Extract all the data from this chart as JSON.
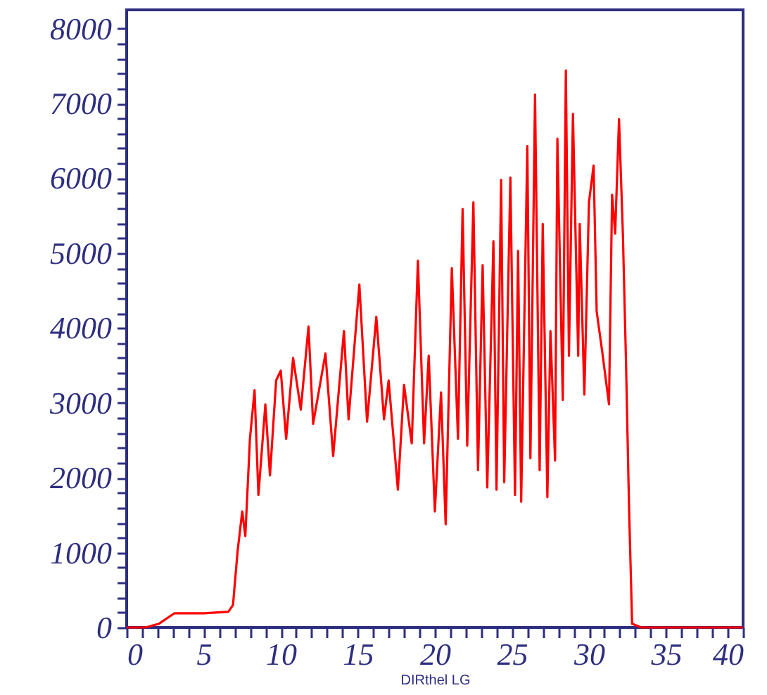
{
  "chart_data": {
    "type": "line",
    "xlabel": "DIRthel LG",
    "x": [
      0,
      1.2,
      2.1,
      3.1,
      5,
      6.6,
      6.9,
      7.2,
      7.5,
      7.7,
      8.0,
      8.3,
      8.55,
      9.0,
      9.3,
      9.7,
      10.0,
      10.35,
      10.8,
      11.3,
      11.8,
      12.1,
      12.9,
      13.4,
      14.1,
      14.4,
      15.1,
      15.6,
      16.2,
      16.7,
      17.0,
      17.6,
      18.0,
      18.5,
      18.9,
      19.3,
      19.6,
      20.0,
      20.4,
      20.7,
      21.1,
      21.5,
      21.8,
      22.1,
      22.5,
      22.8,
      23.1,
      23.4,
      23.8,
      24.0,
      24.3,
      24.5,
      24.9,
      25.2,
      25.4,
      25.6,
      26.0,
      26.2,
      26.5,
      26.8,
      27.0,
      27.3,
      27.5,
      27.8,
      27.95,
      28.3,
      28.5,
      28.7,
      28.96,
      29.3,
      29.4,
      29.7,
      30.0,
      30.3,
      30.5,
      30.85,
      31.3,
      31.5,
      31.7,
      31.95,
      32.2,
      32.4,
      32.6,
      32.8,
      33.4,
      40
    ],
    "series": [
      {
        "color": "#ff0000",
        "values": [
          0,
          0,
          50,
          190,
          190,
          210,
          300,
          1020,
          1550,
          1220,
          2520,
          3170,
          1770,
          2980,
          2030,
          3300,
          3430,
          2520,
          3600,
          2910,
          4020,
          2720,
          3660,
          2290,
          3960,
          2780,
          4580,
          2750,
          4150,
          2780,
          3300,
          1840,
          3240,
          2460,
          4900,
          2460,
          3630,
          1550,
          3140,
          1380,
          4800,
          2520,
          5590,
          2430,
          5680,
          2100,
          4840,
          1870,
          5160,
          1840,
          5980,
          1940,
          6010,
          1770,
          5030,
          1680,
          6430,
          2260,
          7120,
          2100,
          5390,
          1740,
          3960,
          2230,
          6530,
          3040,
          7440,
          3630,
          6860,
          3630,
          5390,
          3110,
          5680,
          6170,
          4220,
          3700,
          2980,
          5780,
          5260,
          6790,
          5260,
          3570,
          1610,
          50,
          0,
          0
        ]
      }
    ],
    "xlim": [
      0,
      40
    ],
    "ylim": [
      0,
      8250
    ],
    "xticks": [
      0,
      {
        "value": 1,
        "label": null
      },
      {
        "value": 2,
        "label": null
      },
      {
        "value": 3,
        "label": null
      },
      {
        "value": 4,
        "label": null
      },
      5,
      {
        "value": 6,
        "label": null
      },
      {
        "value": 7,
        "label": null
      },
      {
        "value": 8,
        "label": null
      },
      {
        "value": 9,
        "label": null
      },
      10,
      {
        "value": 11,
        "label": null
      },
      {
        "value": 12,
        "label": null
      },
      {
        "value": 13,
        "label": null
      },
      {
        "value": 14,
        "label": null
      },
      15,
      {
        "value": 16,
        "label": null
      },
      {
        "value": 17,
        "label": null
      },
      {
        "value": 18,
        "label": null
      },
      {
        "value": 19,
        "label": null
      },
      20,
      {
        "value": 21,
        "label": null
      },
      {
        "value": 22,
        "label": null
      },
      {
        "value": 23,
        "label": null
      },
      {
        "value": 24,
        "label": null
      },
      25,
      {
        "value": 26,
        "label": null
      },
      {
        "value": 27,
        "label": null
      },
      {
        "value": 28,
        "label": null
      },
      {
        "value": 29,
        "label": null
      },
      30,
      {
        "value": 31,
        "label": null
      },
      {
        "value": 32,
        "label": null
      },
      {
        "value": 33,
        "label": null
      },
      {
        "value": 34,
        "label": null
      },
      35,
      {
        "value": 36,
        "label": null
      },
      {
        "value": 37,
        "label": null
      },
      {
        "value": 38,
        "label": null
      },
      {
        "value": 39,
        "label": null
      },
      40
    ],
    "yticks": [
      0,
      {
        "value": 200,
        "label": null
      },
      {
        "value": 400,
        "label": null
      },
      {
        "value": 600,
        "label": null
      },
      {
        "value": 800,
        "label": null
      },
      1000,
      {
        "value": 1200,
        "label": null
      },
      {
        "value": 1400,
        "label": null
      },
      {
        "value": 1600,
        "label": null
      },
      {
        "value": 1800,
        "label": null
      },
      2000,
      {
        "value": 2200,
        "label": null
      },
      {
        "value": 2400,
        "label": null
      },
      {
        "value": 2600,
        "label": null
      },
      {
        "value": 2800,
        "label": null
      },
      3000,
      {
        "value": 3200,
        "label": null
      },
      {
        "value": 3400,
        "label": null
      },
      {
        "value": 3600,
        "label": null
      },
      {
        "value": 3800,
        "label": null
      },
      4000,
      {
        "value": 4200,
        "label": null
      },
      {
        "value": 4400,
        "label": null
      },
      {
        "value": 4600,
        "label": null
      },
      {
        "value": 4800,
        "label": null
      },
      5000,
      {
        "value": 5200,
        "label": null
      },
      {
        "value": 5400,
        "label": null
      },
      {
        "value": 5600,
        "label": null
      },
      {
        "value": 5800,
        "label": null
      },
      6000,
      {
        "value": 6200,
        "label": null
      },
      {
        "value": 6400,
        "label": null
      },
      {
        "value": 6600,
        "label": null
      },
      {
        "value": 6800,
        "label": null
      },
      7000,
      {
        "value": 7200,
        "label": null
      },
      {
        "value": 7400,
        "label": null
      },
      {
        "value": 7600,
        "label": null
      },
      {
        "value": 7800,
        "label": null
      },
      8000
    ],
    "grid": false,
    "marker": "none",
    "line_style": "solid"
  }
}
